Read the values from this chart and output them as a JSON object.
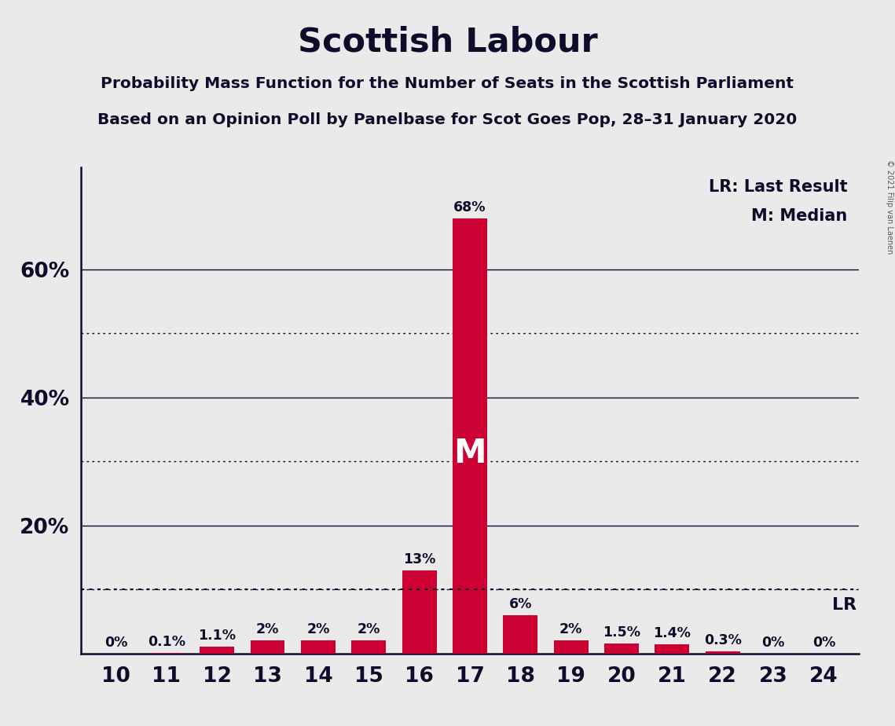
{
  "title": "Scottish Labour",
  "subtitle1": "Probability Mass Function for the Number of Seats in the Scottish Parliament",
  "subtitle2": "Based on an Opinion Poll by Panelbase for Scot Goes Pop, 28–31 January 2020",
  "copyright": "© 2021 Filip van Laenen",
  "seats": [
    10,
    11,
    12,
    13,
    14,
    15,
    16,
    17,
    18,
    19,
    20,
    21,
    22,
    23,
    24
  ],
  "probabilities": [
    0.0,
    0.1,
    1.1,
    2.0,
    2.0,
    2.0,
    13.0,
    68.0,
    6.0,
    2.0,
    1.5,
    1.4,
    0.3,
    0.0,
    0.0
  ],
  "labels": [
    "0%",
    "0.1%",
    "1.1%",
    "2%",
    "2%",
    "2%",
    "13%",
    "68%",
    "6%",
    "2%",
    "1.5%",
    "1.4%",
    "0.3%",
    "0%",
    "0%"
  ],
  "bar_color": "#CC0033",
  "background_color": "#EAEAEA",
  "median_seat": 17,
  "last_result_pct": 10.0,
  "lr_label": "LR",
  "median_label": "M",
  "legend_lr": "LR: Last Result",
  "legend_m": "M: Median",
  "yticks": [
    20,
    40,
    60
  ],
  "ytick_labels": [
    "20%",
    "40%",
    "60%"
  ],
  "dotted_lines": [
    10,
    30,
    50
  ],
  "solid_lines": [
    20,
    40,
    60
  ],
  "ylim": [
    0,
    76
  ],
  "xlim": [
    9.3,
    24.7
  ],
  "bar_width": 0.68
}
